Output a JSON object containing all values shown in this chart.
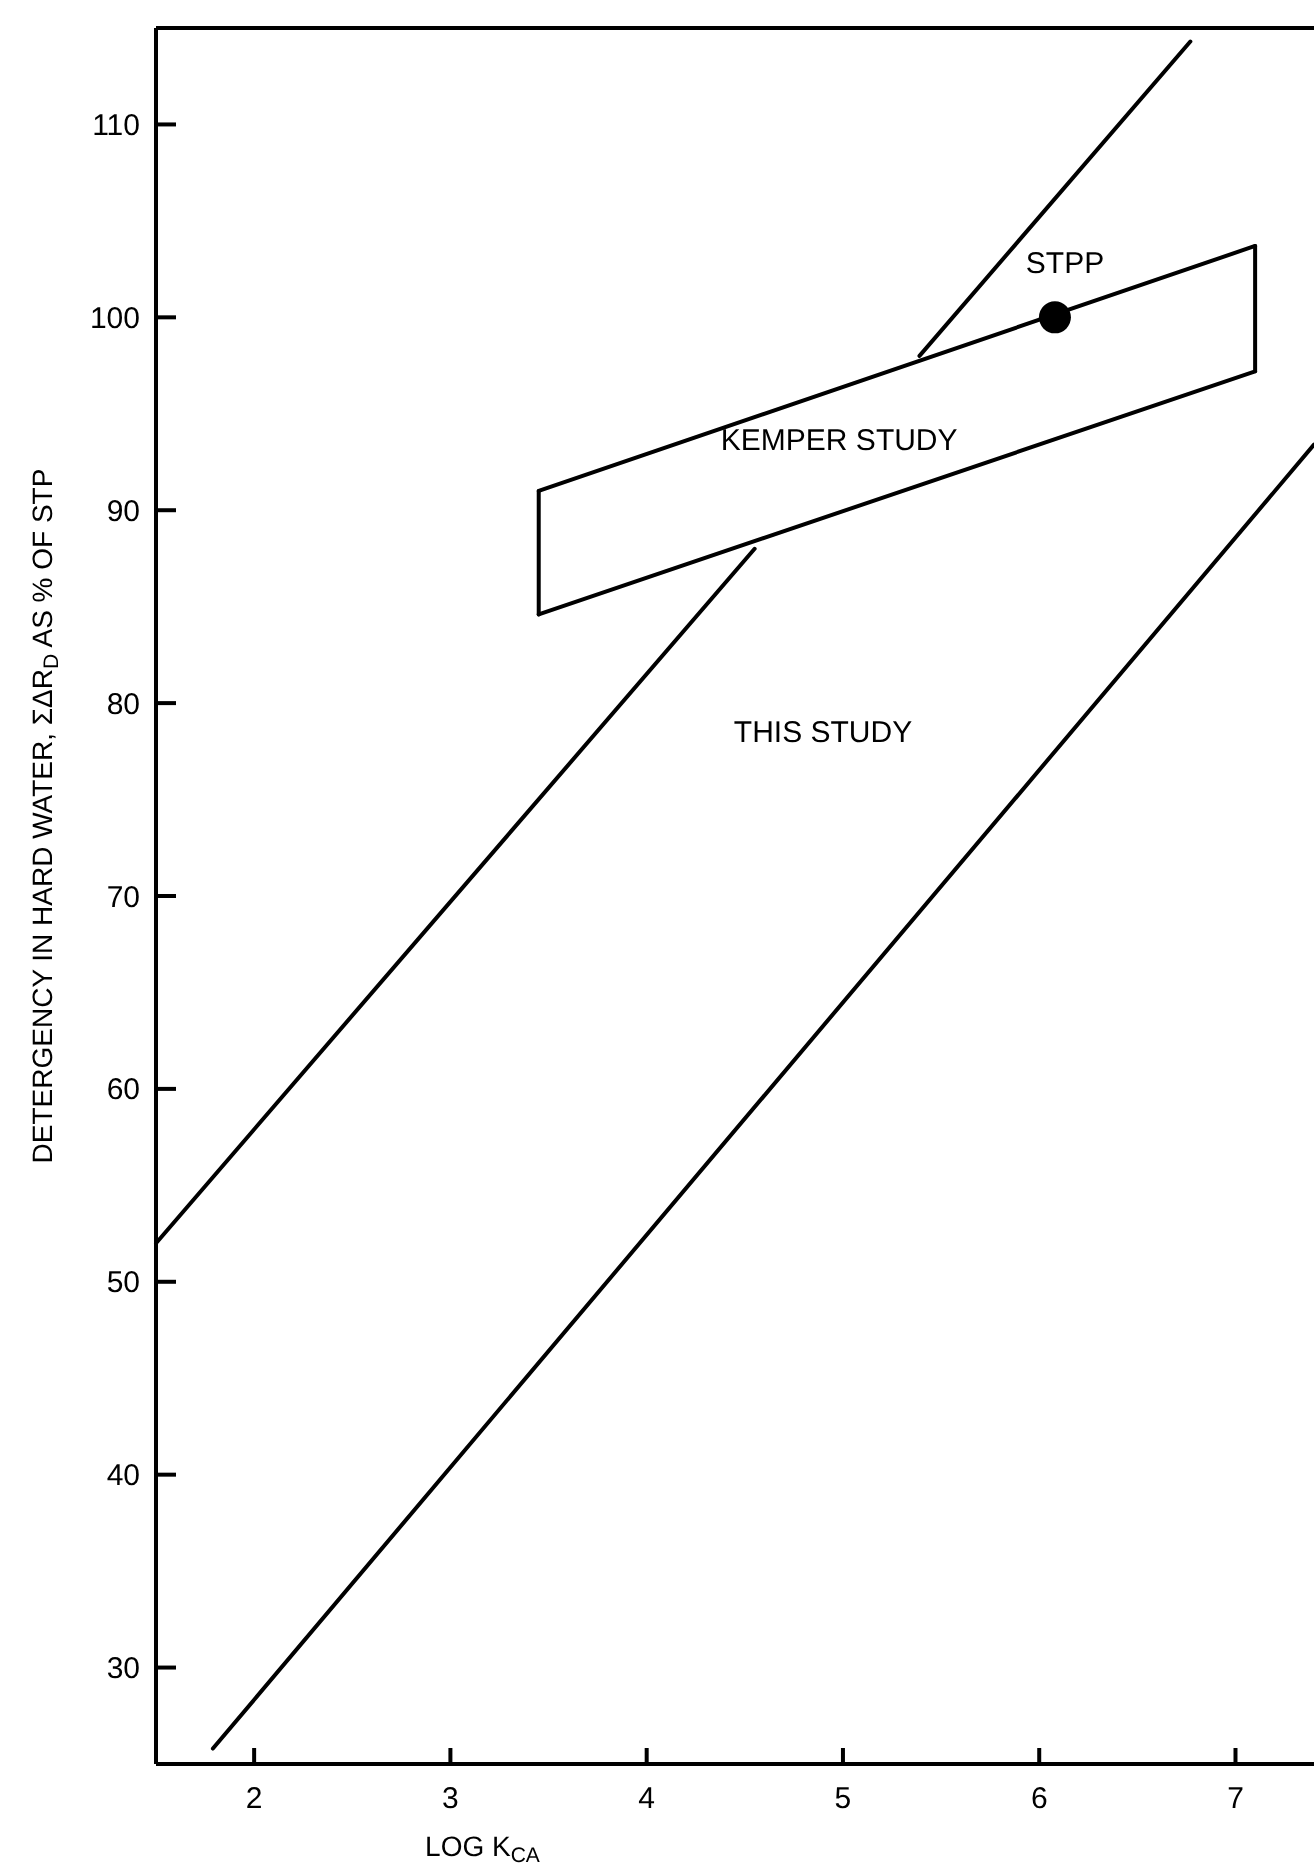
{
  "chart_data": {
    "type": "line",
    "xlabel": "LOG K$_{CA}$",
    "ylabel": "DETERGENCY IN HARD WATER, ΣΔR$_{D}$ AS % OF STP",
    "xlim": [
      1.5,
      7.4
    ],
    "ylim": [
      25,
      115
    ],
    "xticks": [
      2,
      3,
      4,
      5,
      6,
      7
    ],
    "yticks": [
      30,
      40,
      50,
      60,
      70,
      80,
      90,
      100,
      110
    ],
    "grid": false,
    "marker": "none",
    "line_style": "solid",
    "series": [
      {
        "color": "#000000",
        "x": [
          1.5,
          4.55,
          4.9,
          5.39,
          6.77
        ],
        "values": [
          52,
          88,
          null,
          98,
          114.3
        ]
      },
      {
        "color": "#000000",
        "x": [
          1.79,
          7.4
        ],
        "values": [
          25.8,
          93.4
        ]
      },
      {
        "color": "#000000",
        "x": [
          3.45,
          7.1
        ],
        "values": [
          91,
          103.7
        ]
      },
      {
        "color": "#000000",
        "x": [
          3.45,
          7.1
        ],
        "values": [
          84.6,
          97.2
        ]
      },
      {
        "color": "#000000",
        "x": [
          3.45,
          3.45
        ],
        "values": [
          84.6,
          91
        ]
      },
      {
        "color": "#000000",
        "x": [
          7.1,
          7.1
        ],
        "values": [
          97.2,
          103.7
        ]
      },
      {
        "type": "scatter",
        "color": "#000000",
        "marker": "circle",
        "x": [
          6.08
        ],
        "values": [
          100
        ]
      }
    ],
    "annotations": [
      "STPP",
      "KEMPER STUDY",
      "THIS STUDY"
    ]
  }
}
